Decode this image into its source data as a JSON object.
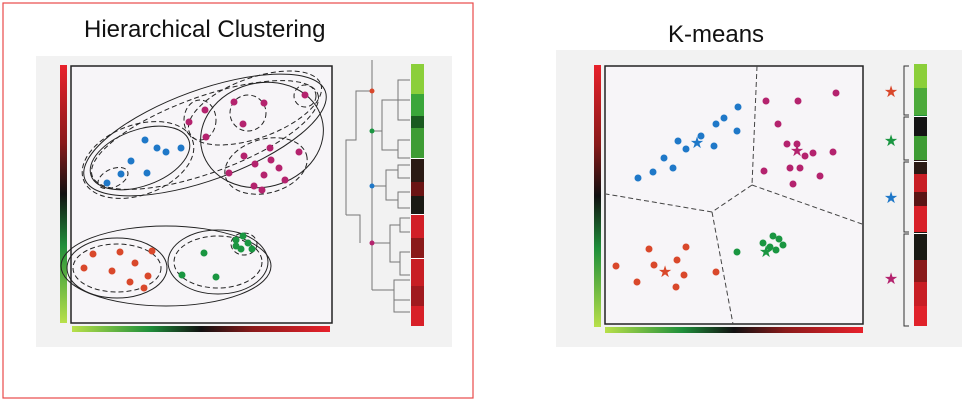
{
  "panels": {
    "left_title": "Hierarchical Clustering",
    "right_title": "K-means"
  },
  "colors": {
    "blue": "#1f78c8",
    "magenta": "#b4236e",
    "orange": "#d9482b",
    "green": "#1a9641",
    "frame_red": "#e84a4a",
    "panel_bg": "#f2f2f2",
    "plot_bg": "#f7f5f8"
  },
  "clusters": [
    {
      "name": "blue",
      "color": "#1f78c8"
    },
    {
      "name": "magenta",
      "color": "#b4236e"
    },
    {
      "name": "orange",
      "color": "#d9482b"
    },
    {
      "name": "green",
      "color": "#1a9641"
    }
  ],
  "kmeans_legend_stars": [
    "orange",
    "green",
    "blue",
    "magenta"
  ]
}
